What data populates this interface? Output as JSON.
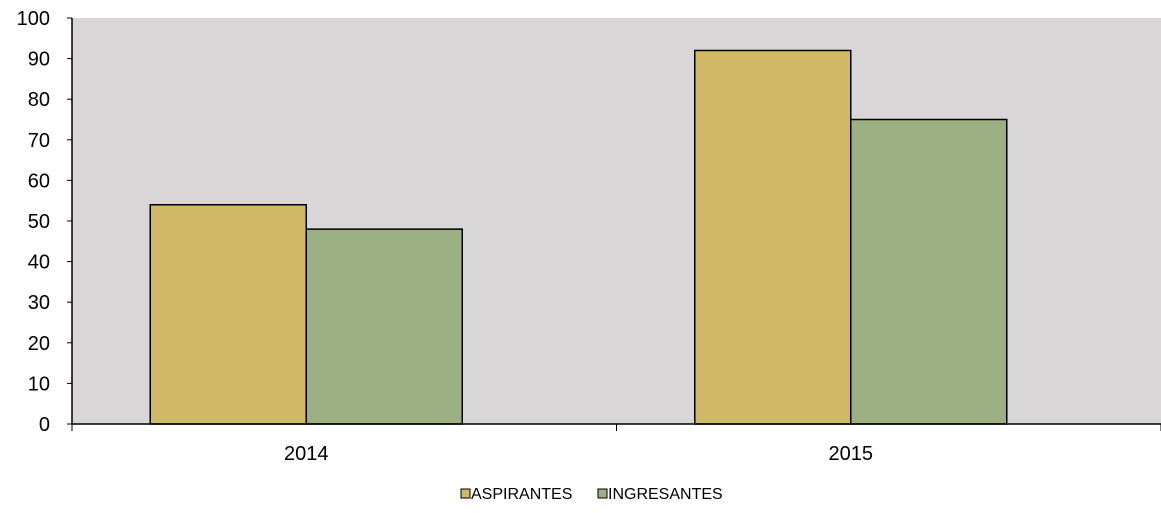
{
  "chart_data": {
    "type": "bar",
    "categories": [
      "2014",
      "2015"
    ],
    "series": [
      {
        "name": "ASPIRANTES",
        "values": [
          54,
          92
        ],
        "color": "#cfb866"
      },
      {
        "name": "INGRESANTES",
        "values": [
          48,
          75
        ],
        "color": "#9db083"
      }
    ],
    "title": "",
    "xlabel": "",
    "ylabel": "",
    "ylim": [
      0,
      100
    ],
    "yticks": [
      0,
      10,
      20,
      30,
      40,
      50,
      60,
      70,
      80,
      90,
      100
    ],
    "grid": false,
    "legend_position": "bottom",
    "plot_background": "#d9d6d7"
  }
}
